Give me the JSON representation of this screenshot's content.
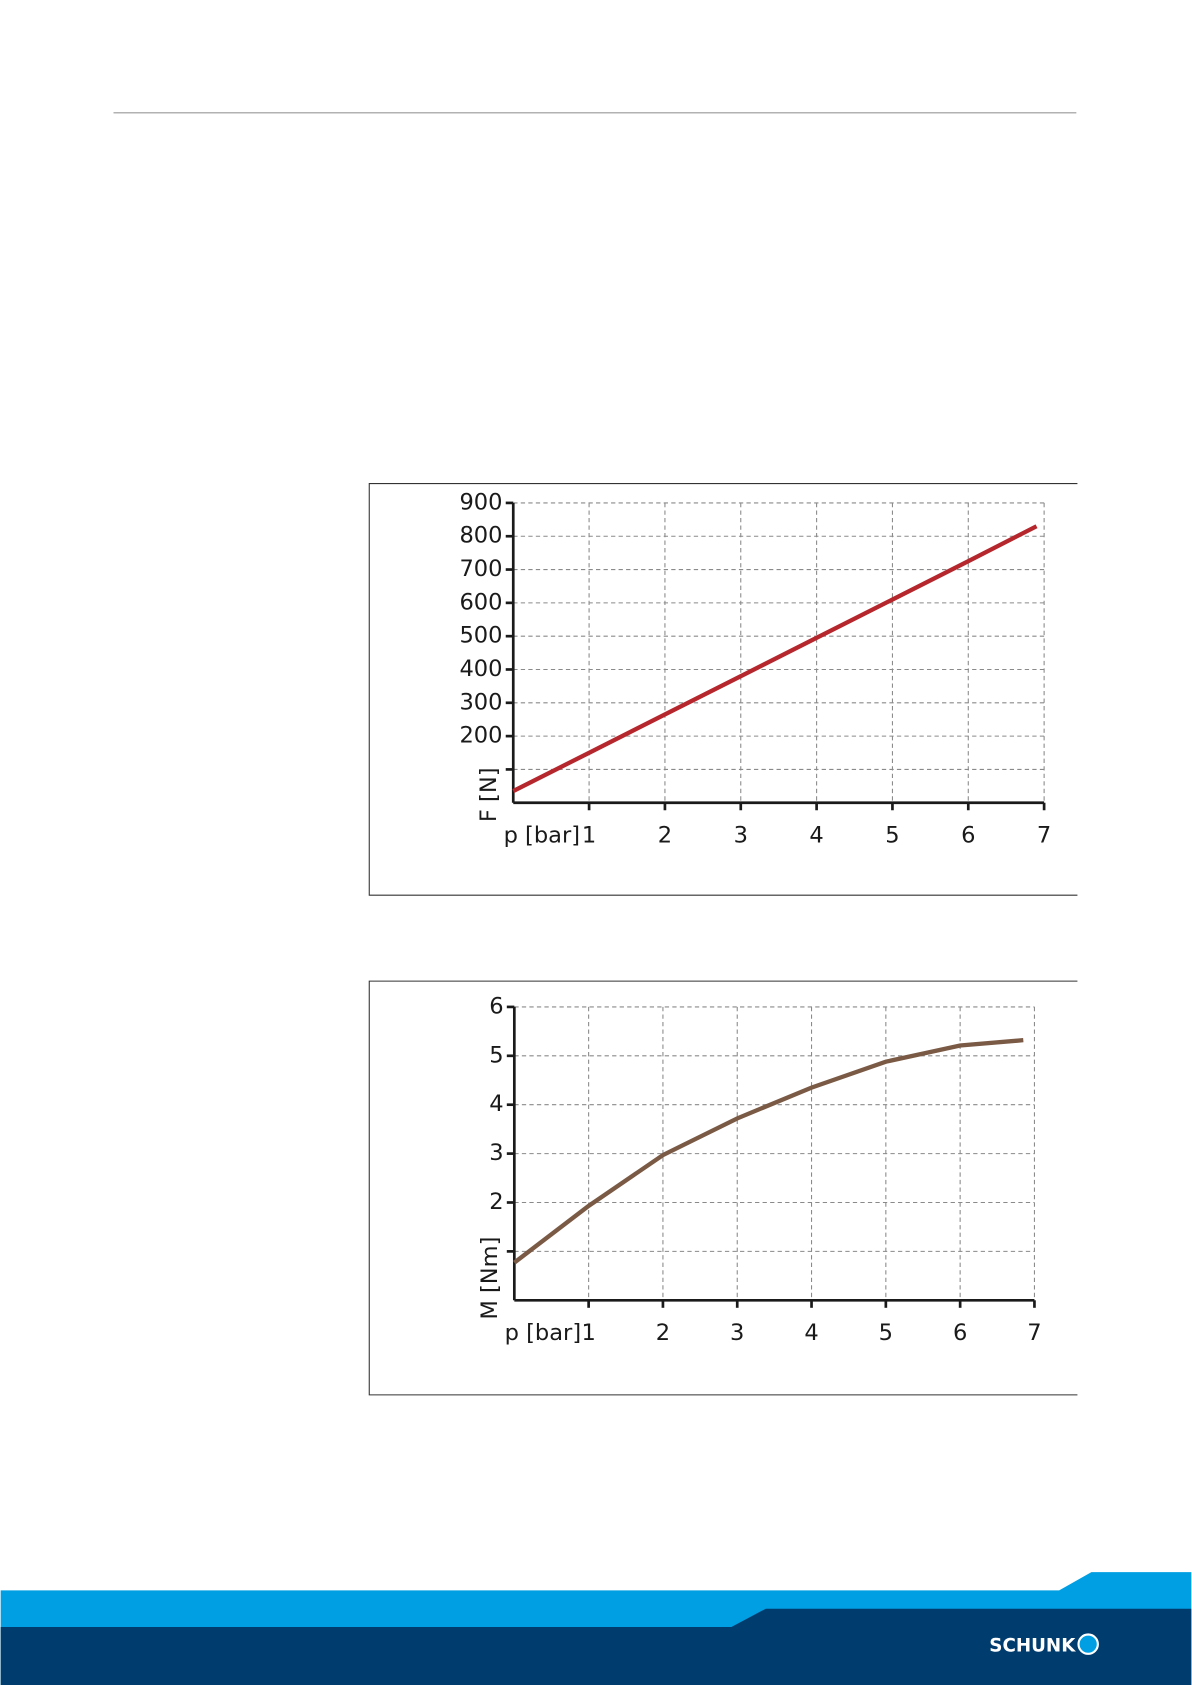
{
  "chart_data": [
    {
      "type": "line",
      "y_label": "F [N]",
      "x_label": "p [bar]",
      "x": [
        0,
        1,
        2,
        3,
        4,
        5,
        6,
        6.9
      ],
      "series": [
        {
          "color": "#b5272d",
          "values": [
            35,
            150,
            265,
            380,
            495,
            610,
            725,
            830
          ]
        }
      ],
      "xlim": [
        0,
        7
      ],
      "xticks": [
        1,
        2,
        3,
        4,
        5,
        6,
        7
      ],
      "ylim": [
        0,
        900
      ],
      "yticks": [
        {
          "value": 100,
          "label": null
        },
        200,
        300,
        400,
        500,
        600,
        700,
        800,
        900
      ],
      "grid": true
    },
    {
      "type": "line",
      "y_label": "M [Nm]",
      "x_label": "p [bar]",
      "x": [
        0,
        1,
        2,
        3,
        4,
        5,
        6,
        6.85
      ],
      "series": [
        {
          "color": "#7a5a45",
          "values": [
            0.77,
            1.93,
            2.97,
            3.72,
            4.35,
            4.88,
            5.21,
            5.32
          ]
        }
      ],
      "xlim": [
        0,
        7
      ],
      "xticks": [
        1,
        2,
        3,
        4,
        5,
        6,
        7
      ],
      "ylim": [
        0,
        6
      ],
      "yticks": [
        {
          "value": 1,
          "label": null
        },
        2,
        3,
        4,
        5,
        6
      ],
      "grid": true
    }
  ],
  "footer": {
    "logo": "SCHUNK"
  }
}
